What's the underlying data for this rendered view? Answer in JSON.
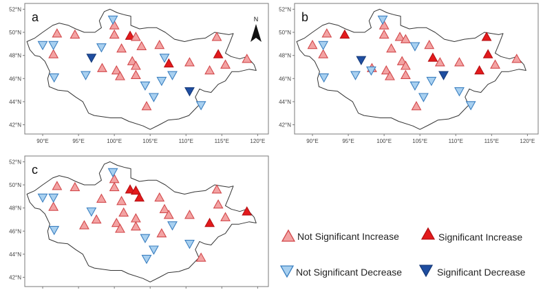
{
  "panels": [
    {
      "label": "a",
      "show_north": true,
      "stations": [
        [
          92,
          49.9,
          "nsi"
        ],
        [
          94.5,
          49.8,
          "nsi"
        ],
        [
          91.5,
          48.1,
          "nsi"
        ],
        [
          96.8,
          47.8,
          "sd"
        ],
        [
          98.3,
          46.9,
          "nsi"
        ],
        [
          100,
          50.6,
          "nsi"
        ],
        [
          100,
          49.8,
          "nsi"
        ],
        [
          101,
          48.6,
          "nsi"
        ],
        [
          100.3,
          46.7,
          "nsi"
        ],
        [
          100.8,
          46.2,
          "nsi"
        ],
        [
          102.2,
          49.7,
          "si"
        ],
        [
          103,
          49.6,
          "nsi"
        ],
        [
          103.8,
          48.8,
          "nsi"
        ],
        [
          102.5,
          47.5,
          "nsi"
        ],
        [
          103,
          47.1,
          "nsi"
        ],
        [
          103,
          46.3,
          "nsi"
        ],
        [
          104.5,
          43.6,
          "nsi"
        ],
        [
          106.3,
          48.9,
          "nsi"
        ],
        [
          107.6,
          47.3,
          "si"
        ],
        [
          110.5,
          47.4,
          "nsi"
        ],
        [
          113.3,
          46.7,
          "nsi"
        ],
        [
          114.3,
          49.6,
          "nsi"
        ],
        [
          114.5,
          48.1,
          "si"
        ],
        [
          115.5,
          47.2,
          "nsi"
        ],
        [
          118.5,
          47.7,
          "nsi"
        ],
        [
          90,
          48.9,
          "nsd"
        ],
        [
          91.5,
          48.9,
          "nsd"
        ],
        [
          91.6,
          46.1,
          "nsd"
        ],
        [
          96,
          46.3,
          "nsd"
        ],
        [
          98.2,
          48.7,
          "nsd"
        ],
        [
          99.8,
          51.1,
          "nsd"
        ],
        [
          104.3,
          45.4,
          "nsd"
        ],
        [
          105.5,
          44.4,
          "nsd"
        ],
        [
          106.6,
          45.8,
          "nsd"
        ],
        [
          107,
          47.8,
          "nsd"
        ],
        [
          108.1,
          46.3,
          "nsd"
        ],
        [
          112.1,
          43.7,
          "nsd"
        ],
        [
          110.5,
          44.9,
          "sd"
        ]
      ]
    },
    {
      "label": "b",
      "show_north": false,
      "stations": [
        [
          92,
          49.9,
          "nsi"
        ],
        [
          94.5,
          49.8,
          "si"
        ],
        [
          91.5,
          48.1,
          "nsi"
        ],
        [
          90,
          48.9,
          "nsi"
        ],
        [
          98.3,
          46.9,
          "nsi"
        ],
        [
          100,
          50.6,
          "nsi"
        ],
        [
          100,
          49.8,
          "nsi"
        ],
        [
          101,
          48.6,
          "nsi"
        ],
        [
          100.3,
          46.7,
          "nsi"
        ],
        [
          100.8,
          46.2,
          "nsi"
        ],
        [
          102.2,
          49.6,
          "nsi"
        ],
        [
          103,
          49.4,
          "nsi"
        ],
        [
          102.5,
          47.5,
          "nsi"
        ],
        [
          103,
          47.1,
          "nsi"
        ],
        [
          103,
          46.3,
          "nsi"
        ],
        [
          104.5,
          43.6,
          "nsi"
        ],
        [
          106.3,
          48.9,
          "nsi"
        ],
        [
          106.8,
          47.8,
          "si"
        ],
        [
          107.8,
          47.4,
          "nsi"
        ],
        [
          110.5,
          47.4,
          "nsi"
        ],
        [
          113.3,
          46.7,
          "si"
        ],
        [
          114.3,
          49.6,
          "si"
        ],
        [
          114.5,
          48.1,
          "si"
        ],
        [
          115.5,
          47.2,
          "nsi"
        ],
        [
          118.5,
          47.7,
          "nsi"
        ],
        [
          91.5,
          48.9,
          "nsd"
        ],
        [
          91.6,
          46.1,
          "nsd"
        ],
        [
          96,
          46.3,
          "nsd"
        ],
        [
          96.8,
          47.6,
          "sd"
        ],
        [
          98.2,
          46.7,
          "nsd"
        ],
        [
          99.8,
          51.1,
          "nsd"
        ],
        [
          104.3,
          48.8,
          "nsd"
        ],
        [
          104.3,
          45.4,
          "nsd"
        ],
        [
          105.5,
          44.4,
          "nsd"
        ],
        [
          106.6,
          45.8,
          "nsd"
        ],
        [
          108.3,
          46.3,
          "sd"
        ],
        [
          110.5,
          44.9,
          "nsd"
        ],
        [
          112.1,
          43.7,
          "nsd"
        ]
      ]
    },
    {
      "label": "c",
      "show_north": false,
      "stations": [
        [
          92,
          49.9,
          "nsi"
        ],
        [
          94.5,
          49.8,
          "nsi"
        ],
        [
          91.5,
          48.1,
          "nsi"
        ],
        [
          95.8,
          46.5,
          "nsi"
        ],
        [
          97.5,
          47,
          "nsi"
        ],
        [
          98.2,
          48.8,
          "nsi"
        ],
        [
          100,
          50.5,
          "nsi"
        ],
        [
          100,
          49.8,
          "nsi"
        ],
        [
          101,
          48.6,
          "nsi"
        ],
        [
          101.3,
          47.6,
          "nsi"
        ],
        [
          100.3,
          46.7,
          "nsi"
        ],
        [
          100.8,
          46.2,
          "nsi"
        ],
        [
          102.2,
          49.6,
          "si"
        ],
        [
          103,
          49.5,
          "si"
        ],
        [
          103.5,
          48.9,
          "si"
        ],
        [
          103,
          47.1,
          "nsi"
        ],
        [
          103,
          46.4,
          "nsi"
        ],
        [
          106.3,
          48.9,
          "nsi"
        ],
        [
          107,
          47.9,
          "nsi"
        ],
        [
          107.6,
          47.4,
          "nsi"
        ],
        [
          106.6,
          45.8,
          "nsi"
        ],
        [
          110.5,
          47.4,
          "nsi"
        ],
        [
          113.3,
          46.7,
          "si"
        ],
        [
          114.3,
          49.6,
          "nsi"
        ],
        [
          114.5,
          48.3,
          "nsi"
        ],
        [
          115.5,
          47.2,
          "nsi"
        ],
        [
          118.5,
          47.7,
          "si"
        ],
        [
          112.1,
          43.7,
          "nsi"
        ],
        [
          90,
          48.9,
          "nsd"
        ],
        [
          91.5,
          48.9,
          "nsd"
        ],
        [
          91.6,
          46.1,
          "nsd"
        ],
        [
          96.8,
          47.7,
          "nsd"
        ],
        [
          99.8,
          51.1,
          "nsd"
        ],
        [
          104.3,
          45.4,
          "nsd"
        ],
        [
          104.5,
          43.6,
          "nsd"
        ],
        [
          105.5,
          44.4,
          "nsd"
        ],
        [
          108.1,
          46.5,
          "nsd"
        ],
        [
          110.5,
          44.9,
          "nsd"
        ]
      ]
    }
  ],
  "axes": {
    "x_ticks": [
      90,
      95,
      100,
      105,
      110,
      115,
      120
    ],
    "x_tick_labels": [
      "90°E",
      "95°E",
      "100°E",
      "105°E",
      "110°E",
      "115°E",
      "120°E"
    ],
    "y_ticks": [
      42,
      44,
      46,
      48,
      50,
      52
    ],
    "y_tick_labels": [
      "42°N",
      "44°N",
      "46°N",
      "48°N",
      "50°N",
      "52°N"
    ],
    "lon_range": [
      87.5,
      121.5
    ],
    "lat_range": [
      41.2,
      52.5
    ]
  },
  "north_arrow_label": "N",
  "legend": {
    "nsi": "Not Significant Increase",
    "si": "Significant Increase",
    "nsd": "Not Significant Decrease",
    "sd": "Significant Decrease"
  },
  "colors": {
    "nsi_fill": "#f3a3a3",
    "nsi_stroke": "#d2484b",
    "si_fill": "#e31a1c",
    "si_stroke": "#b50f12",
    "nsd_fill": "#a8d0f0",
    "nsd_stroke": "#3a7fc0",
    "sd_fill": "#1f4ea1",
    "sd_stroke": "#163a7a",
    "border": "#333333",
    "frame": "#7a7a7a"
  },
  "boundary": [
    [
      87.8,
      49.2
    ],
    [
      88.9,
      49.5
    ],
    [
      90.0,
      50.0
    ],
    [
      91.4,
      50.6
    ],
    [
      92.3,
      50.8
    ],
    [
      93.6,
      50.6
    ],
    [
      94.6,
      50.3
    ],
    [
      95.8,
      50.0
    ],
    [
      97.3,
      50.0
    ],
    [
      98.2,
      50.4
    ],
    [
      97.9,
      51.0
    ],
    [
      98.6,
      51.8
    ],
    [
      99.4,
      52.0
    ],
    [
      100.4,
      51.7
    ],
    [
      101.5,
      51.5
    ],
    [
      102.3,
      51.4
    ],
    [
      102.3,
      50.6
    ],
    [
      103.5,
      50.3
    ],
    [
      104.7,
      50.4
    ],
    [
      105.9,
      50.4
    ],
    [
      107.1,
      50.0
    ],
    [
      108.4,
      49.4
    ],
    [
      109.8,
      49.2
    ],
    [
      111.2,
      49.4
    ],
    [
      112.7,
      49.5
    ],
    [
      114.0,
      50.0
    ],
    [
      115.0,
      49.9
    ],
    [
      116.0,
      49.8
    ],
    [
      116.6,
      49.9
    ],
    [
      116.1,
      49.1
    ],
    [
      115.5,
      48.2
    ],
    [
      116.3,
      47.9
    ],
    [
      117.5,
      47.7
    ],
    [
      118.5,
      47.9
    ],
    [
      119.5,
      47.2
    ],
    [
      119.8,
      46.7
    ],
    [
      118.8,
      46.8
    ],
    [
      117.4,
      46.6
    ],
    [
      116.4,
      46.6
    ],
    [
      115.5,
      45.8
    ],
    [
      114.5,
      45.5
    ],
    [
      113.5,
      44.8
    ],
    [
      112.6,
      44.9
    ],
    [
      111.9,
      45.1
    ],
    [
      111.3,
      44.4
    ],
    [
      111.8,
      43.7
    ],
    [
      110.4,
      42.8
    ],
    [
      109.0,
      42.5
    ],
    [
      107.5,
      42.4
    ],
    [
      106.3,
      42.0
    ],
    [
      105.0,
      41.6
    ],
    [
      104.0,
      41.9
    ],
    [
      102.0,
      42.3
    ],
    [
      101.0,
      42.6
    ],
    [
      99.5,
      42.6
    ],
    [
      97.2,
      42.8
    ],
    [
      96.4,
      43.0
    ],
    [
      95.6,
      44.0
    ],
    [
      94.6,
      44.4
    ],
    [
      93.5,
      44.9
    ],
    [
      92.1,
      45.0
    ],
    [
      90.9,
      45.3
    ],
    [
      90.7,
      46.0
    ],
    [
      91.0,
      46.6
    ],
    [
      90.3,
      47.5
    ],
    [
      89.6,
      47.9
    ],
    [
      88.9,
      48.0
    ],
    [
      88.2,
      48.5
    ],
    [
      87.8,
      49.2
    ]
  ]
}
